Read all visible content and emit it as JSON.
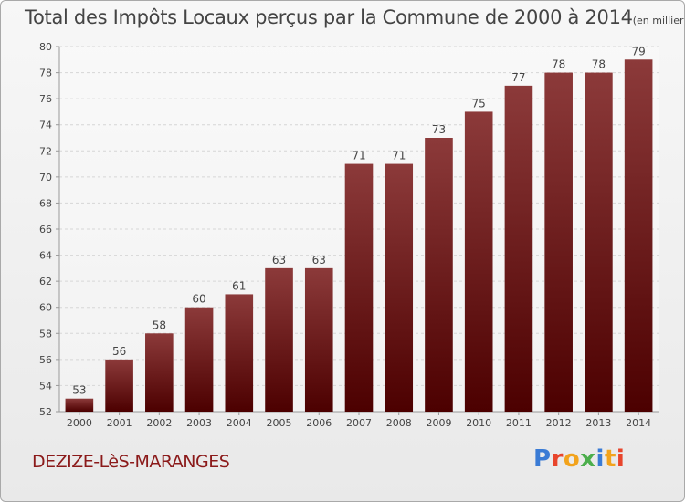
{
  "header": {
    "title": "Total des Impôts Locaux perçus par la Commune de 2000 à 2014",
    "unit_note": "(en milliers d'€)"
  },
  "footer": {
    "commune": "DEZIZE-LèS-MARANGES",
    "logo_text": "Proxiti",
    "logo_colors": [
      "#3a7bd5",
      "#e8452c",
      "#f2a31c",
      "#4cae4c",
      "#3a7bd5",
      "#f2a31c",
      "#e8452c"
    ]
  },
  "colors": {
    "bar_top": "#8c3a3a",
    "bar_bottom": "#4c0000",
    "grid": "#d6d6d6",
    "axis": "#999999",
    "text": "#444444"
  },
  "chart_data": {
    "type": "bar",
    "title": "Total des Impôts Locaux perçus par la Commune de 2000 à 2014",
    "xlabel": "",
    "ylabel": "",
    "categories": [
      "2000",
      "2001",
      "2002",
      "2003",
      "2004",
      "2005",
      "2006",
      "2007",
      "2008",
      "2009",
      "2010",
      "2011",
      "2012",
      "2013",
      "2014"
    ],
    "values": [
      53,
      56,
      58,
      60,
      61,
      63,
      63,
      71,
      71,
      73,
      75,
      77,
      78,
      78,
      79
    ],
    "ylim": [
      52,
      80
    ],
    "yticks": [
      52,
      54,
      56,
      58,
      60,
      62,
      64,
      66,
      68,
      70,
      72,
      74,
      76,
      78,
      80
    ],
    "grid": true,
    "legend": "none"
  }
}
